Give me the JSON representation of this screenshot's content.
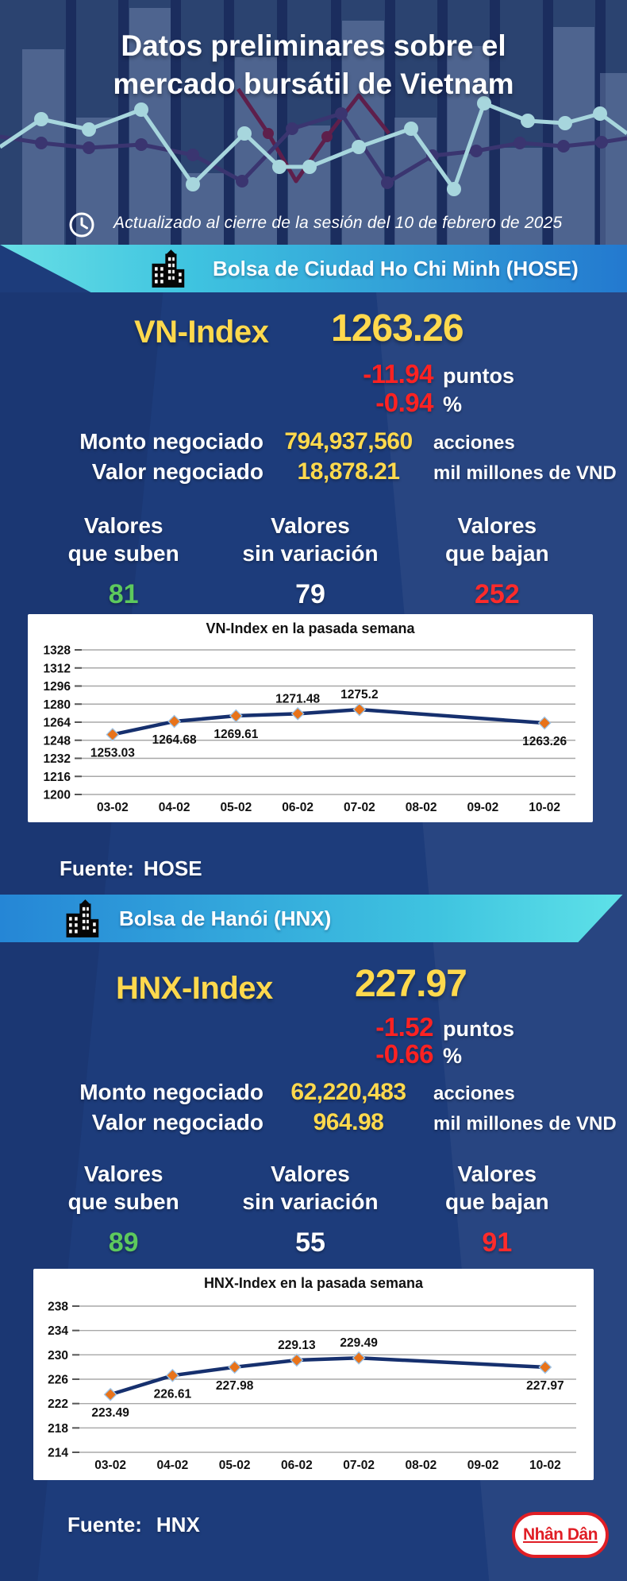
{
  "colors": {
    "background": "#1D3C7B",
    "accent_yellow": "#FFD94D",
    "negative_red": "#FF2222",
    "positive_green": "#5DC95D",
    "banner_hose_gradient": [
      "#68DFE5",
      "#2379CF"
    ],
    "banner_hnx_gradient": [
      "#2586D6",
      "#5FE2E8"
    ],
    "chart_line": "#16306E",
    "chart_marker_orange": "#E8731A",
    "logo_red": "#E01E25"
  },
  "header": {
    "title_line1": "Datos preliminares sobre el",
    "title_line2": "mercado bursátil de Vietnam",
    "updated": "Actualizado al cierre de la sesión del 10 de febrero de 2025"
  },
  "hose": {
    "banner_label": "Bolsa de Ciudad Ho Chi Minh (HOSE)",
    "index_label": "VN-Index",
    "index_value": "1263.26",
    "change": {
      "points": "-11.94",
      "points_unit": "puntos",
      "percent": "-0.94",
      "percent_unit": "%"
    },
    "volume": {
      "label": "Monto negociado",
      "value": "794,937,560",
      "unit": "acciones"
    },
    "turnover": {
      "label": "Valor negociado",
      "value": "18,878.21",
      "unit": "mil millones de VND"
    },
    "breadth": {
      "up": {
        "line1": "Valores",
        "line2": "que suben",
        "value": "81"
      },
      "flat": {
        "line1": "Valores",
        "line2": "sin variación",
        "value": "79"
      },
      "down": {
        "line1": "Valores",
        "line2": "que bajan",
        "value": "252"
      }
    },
    "source_label": "Fuente:",
    "source_value": "HOSE"
  },
  "hnx": {
    "banner_label": "Bolsa de Hanói (HNX)",
    "index_label": "HNX-Index",
    "index_value": "227.97",
    "change": {
      "points": "-1.52",
      "points_unit": "puntos",
      "percent": "-0.66",
      "percent_unit": "%"
    },
    "volume": {
      "label": "Monto negociado",
      "value": "62,220,483",
      "unit": "acciones"
    },
    "turnover": {
      "label": "Valor negociado",
      "value": "964.98",
      "unit": "mil millones de VND"
    },
    "breadth": {
      "up": {
        "line1": "Valores",
        "line2": "que suben",
        "value": "89"
      },
      "flat": {
        "line1": "Valores",
        "line2": "sin variación",
        "value": "55"
      },
      "down": {
        "line1": "Valores",
        "line2": "que bajan",
        "value": "91"
      }
    },
    "source_label": "Fuente:",
    "source_value": "HNX"
  },
  "footer": {
    "logo_text": "Nhân Dân"
  },
  "chart_data": [
    {
      "type": "line",
      "title": "VN-Index en la pasada semana",
      "x": [
        "03-02",
        "04-02",
        "05-02",
        "06-02",
        "07-02",
        "08-02",
        "09-02",
        "10-02"
      ],
      "values": [
        1253.03,
        1264.68,
        1269.61,
        1271.48,
        1275.2,
        null,
        null,
        1263.26
      ],
      "point_labels": [
        "1253.03",
        "1264.68",
        "1269.61",
        "1271.48",
        "1275.2",
        "",
        "",
        "1263.26"
      ],
      "label_positions": [
        "below",
        "below",
        "below",
        "above",
        "above",
        "",
        "",
        "below"
      ],
      "ylim": [
        1200,
        1328
      ],
      "ytick_step": 16,
      "grid": true,
      "legend": "none",
      "line_color": "#16306E",
      "marker": "diamond",
      "marker_color": "#E8731A"
    },
    {
      "type": "line",
      "title": "HNX-Index en la pasada semana",
      "x": [
        "03-02",
        "04-02",
        "05-02",
        "06-02",
        "07-02",
        "08-02",
        "09-02",
        "10-02"
      ],
      "values": [
        223.49,
        226.61,
        227.98,
        229.13,
        229.49,
        null,
        null,
        227.97
      ],
      "point_labels": [
        "223.49",
        "226.61",
        "227.98",
        "229.13",
        "229.49",
        "",
        "",
        "227.97"
      ],
      "label_positions": [
        "below",
        "below",
        "below",
        "above",
        "above",
        "",
        "",
        "below"
      ],
      "ylim": [
        214,
        238
      ],
      "ytick_step": 4,
      "grid": true,
      "legend": "none",
      "line_color": "#16306E",
      "marker": "diamond",
      "marker_color": "#E8731A"
    }
  ]
}
